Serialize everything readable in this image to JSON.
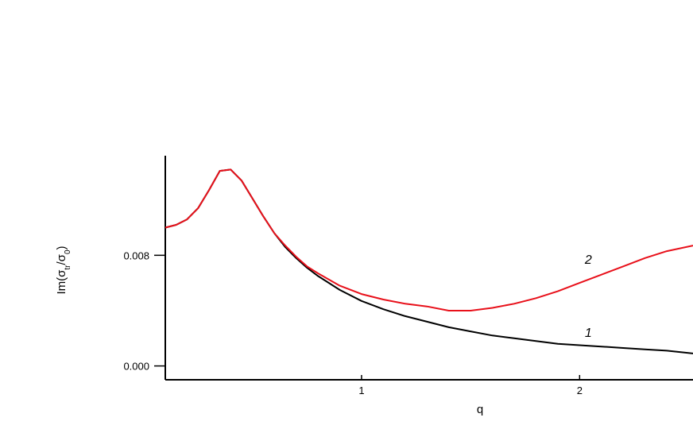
{
  "chart_data": {
    "type": "line",
    "xlabel": "q",
    "ylabel": "Im(σtr/σ0)",
    "ylabel_parts": {
      "prefix": "Im(σ",
      "sub1": "tr",
      "mid": "/σ",
      "sub2": "0",
      "suffix": ")"
    },
    "xlim": [
      0.1,
      2.52
    ],
    "ylim": [
      -0.001,
      0.0152
    ],
    "x_ticks": [
      {
        "value": 1,
        "label": "1"
      },
      {
        "value": 2,
        "label": "2"
      }
    ],
    "y_ticks": [
      {
        "value": 0.0,
        "label": "0.000"
      },
      {
        "value": 0.008,
        "label": "0.008"
      }
    ],
    "series": [
      {
        "name": "1",
        "color": "#000000",
        "label_at": {
          "x": 2.04,
          "y": 0.0021
        },
        "x": [
          0.1,
          0.15,
          0.2,
          0.25,
          0.3,
          0.35,
          0.4,
          0.45,
          0.5,
          0.55,
          0.6,
          0.65,
          0.7,
          0.75,
          0.8,
          0.9,
          1.0,
          1.1,
          1.2,
          1.3,
          1.4,
          1.5,
          1.6,
          1.7,
          1.8,
          1.9,
          2.0,
          2.1,
          2.2,
          2.3,
          2.4,
          2.52
        ],
        "y": [
          0.01,
          0.0102,
          0.0106,
          0.0114,
          0.0127,
          0.0141,
          0.0142,
          0.0134,
          0.0121,
          0.0108,
          0.0096,
          0.0086,
          0.0078,
          0.0071,
          0.0065,
          0.0055,
          0.0047,
          0.0041,
          0.0036,
          0.0032,
          0.0028,
          0.0025,
          0.0022,
          0.002,
          0.0018,
          0.0016,
          0.0015,
          0.0014,
          0.0013,
          0.0012,
          0.0011,
          0.0009
        ]
      },
      {
        "name": "2",
        "color": "#e8101a",
        "label_at": {
          "x": 2.04,
          "y": 0.0074
        },
        "x": [
          0.1,
          0.15,
          0.2,
          0.25,
          0.3,
          0.35,
          0.4,
          0.45,
          0.5,
          0.55,
          0.6,
          0.65,
          0.7,
          0.75,
          0.8,
          0.9,
          1.0,
          1.1,
          1.2,
          1.3,
          1.4,
          1.5,
          1.6,
          1.7,
          1.8,
          1.9,
          2.0,
          2.1,
          2.2,
          2.3,
          2.4,
          2.52
        ],
        "y": [
          0.01,
          0.0102,
          0.0106,
          0.0114,
          0.0127,
          0.0141,
          0.0142,
          0.0134,
          0.0121,
          0.0108,
          0.0096,
          0.0087,
          0.0079,
          0.0072,
          0.0067,
          0.0058,
          0.0052,
          0.0048,
          0.0045,
          0.0043,
          0.004,
          0.004,
          0.0042,
          0.0045,
          0.0049,
          0.0054,
          0.006,
          0.0066,
          0.0072,
          0.0078,
          0.0083,
          0.0087
        ]
      }
    ]
  }
}
